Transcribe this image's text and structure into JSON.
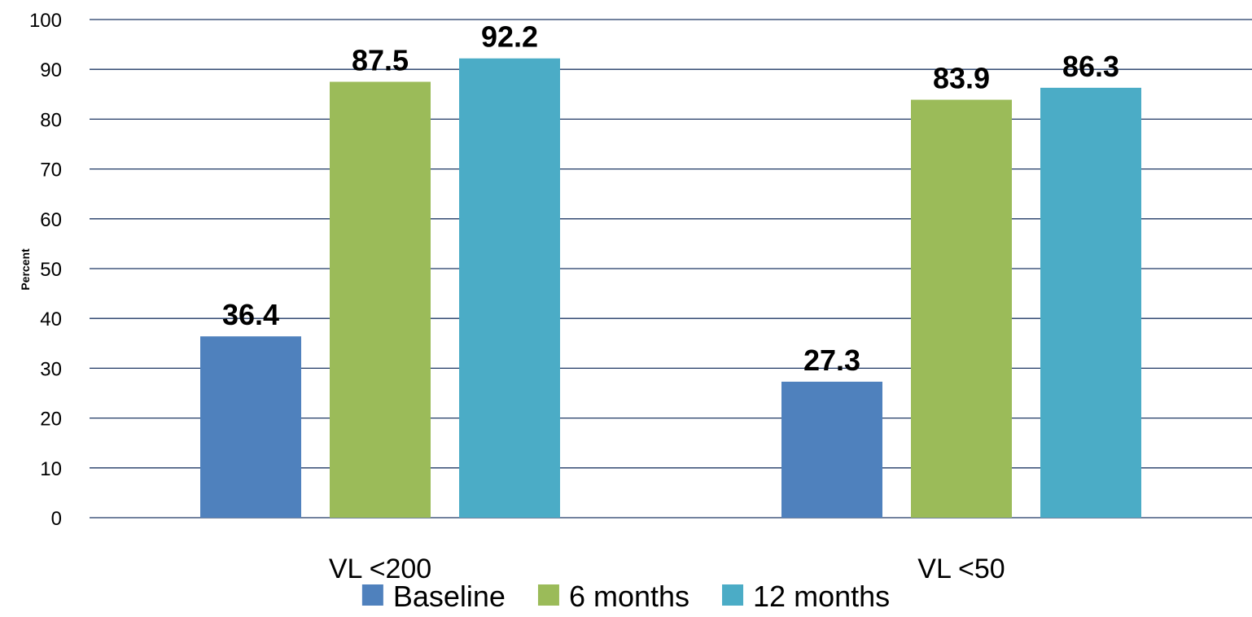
{
  "chart_data": {
    "type": "bar",
    "title": "",
    "xlabel": "",
    "ylabel": "Percent",
    "ylim": [
      0,
      100
    ],
    "yticks": [
      0,
      10,
      20,
      30,
      40,
      50,
      60,
      70,
      80,
      90,
      100
    ],
    "grid": true,
    "legend_position": "bottom",
    "categories": [
      "VL <200",
      "VL <50"
    ],
    "series": [
      {
        "name": "Baseline",
        "color": "#4f81bd",
        "values": [
          36.4,
          27.3
        ]
      },
      {
        "name": "6 months",
        "color": "#9bbb59",
        "values": [
          87.5,
          83.9
        ]
      },
      {
        "name": "12 months",
        "color": "#4bacc6",
        "values": [
          92.2,
          86.3
        ]
      }
    ]
  }
}
